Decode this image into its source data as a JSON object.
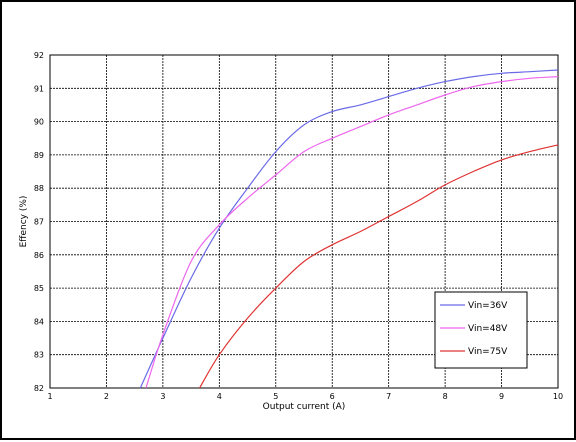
{
  "chart_data": {
    "type": "line",
    "xlabel": "Output current (A)",
    "ylabel": "Effency (%)",
    "xlim": [
      1,
      10
    ],
    "ylim": [
      82,
      92
    ],
    "xticks": [
      "1",
      "2",
      "3",
      "4",
      "5",
      "6",
      "7",
      "8",
      "9",
      "10"
    ],
    "yticks": [
      "82",
      "83",
      "84",
      "85",
      "86",
      "87",
      "88",
      "89",
      "90",
      "91",
      "92"
    ],
    "grid": true,
    "legend": "bottom-right",
    "series": [
      {
        "name": "Vin=36V",
        "color": "#6a6ae6",
        "x": [
          2.6,
          3.0,
          3.5,
          4.0,
          4.5,
          5.0,
          5.5,
          6.0,
          6.5,
          7.0,
          7.5,
          8.0,
          8.5,
          9.0,
          9.5,
          10.0
        ],
        "y": [
          82.0,
          83.5,
          85.3,
          86.8,
          88.0,
          89.1,
          89.9,
          90.3,
          90.5,
          90.75,
          91.0,
          91.2,
          91.35,
          91.45,
          91.5,
          91.55
        ]
      },
      {
        "name": "Vin=48V",
        "color": "#ee66ee",
        "x": [
          2.7,
          3.0,
          3.5,
          4.0,
          4.5,
          5.0,
          5.5,
          6.0,
          6.5,
          7.0,
          7.5,
          8.0,
          8.5,
          9.0,
          9.5,
          10.0
        ],
        "y": [
          82.0,
          83.6,
          85.8,
          86.9,
          87.7,
          88.4,
          89.1,
          89.5,
          89.85,
          90.2,
          90.5,
          90.8,
          91.05,
          91.2,
          91.3,
          91.35
        ]
      },
      {
        "name": "Vin=75V",
        "color": "#e03333",
        "x": [
          3.65,
          4.0,
          4.5,
          5.0,
          5.5,
          6.0,
          6.5,
          7.0,
          7.5,
          8.0,
          8.5,
          9.0,
          9.5,
          10.0
        ],
        "y": [
          82.0,
          83.0,
          84.1,
          85.0,
          85.8,
          86.3,
          86.7,
          87.15,
          87.6,
          88.1,
          88.5,
          88.85,
          89.1,
          89.3
        ]
      }
    ]
  }
}
